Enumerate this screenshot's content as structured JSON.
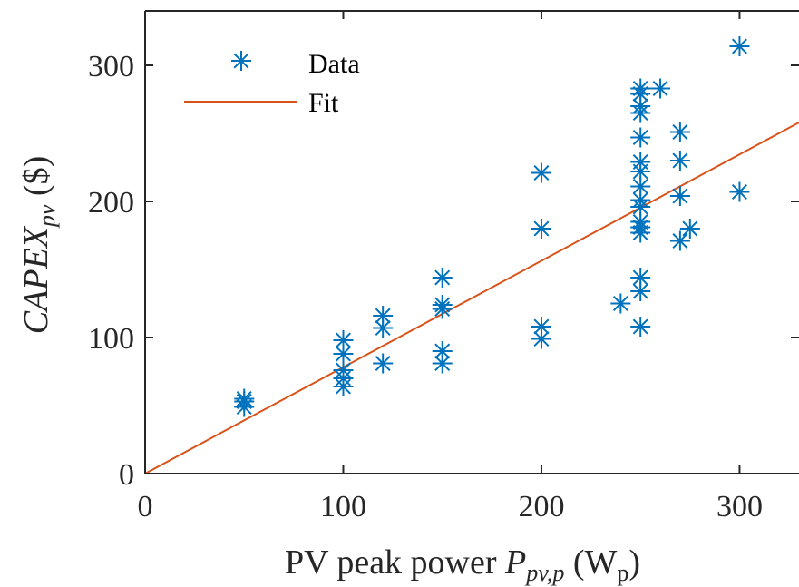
{
  "chart_data": {
    "type": "scatter",
    "xlabel": {
      "text": "PV peak power ",
      "sym": "P",
      "sub": "pv,p",
      "unit_open": " (W",
      "unit_sub": "p",
      "unit_close": ")"
    },
    "ylabel": {
      "sym": "CAPEX",
      "sub": "pv",
      "unit": " ($)"
    },
    "xlim": [
      0,
      330
    ],
    "ylim": [
      0,
      340
    ],
    "xticks": [
      0,
      100,
      200,
      300
    ],
    "yticks": [
      0,
      100,
      200,
      300
    ],
    "grid": false,
    "legend_position": "top-left",
    "series": [
      {
        "name": "Data",
        "marker": "asterisk",
        "color": "#0072BD",
        "points": [
          [
            50,
            55
          ],
          [
            50,
            53
          ],
          [
            50,
            49
          ],
          [
            100,
            98
          ],
          [
            100,
            88
          ],
          [
            100,
            76
          ],
          [
            100,
            70
          ],
          [
            100,
            64
          ],
          [
            120,
            116
          ],
          [
            120,
            107
          ],
          [
            120,
            81
          ],
          [
            150,
            144
          ],
          [
            150,
            124
          ],
          [
            150,
            121
          ],
          [
            150,
            90
          ],
          [
            150,
            81
          ],
          [
            200,
            221
          ],
          [
            200,
            180
          ],
          [
            200,
            108
          ],
          [
            200,
            99
          ],
          [
            240,
            125
          ],
          [
            250,
            283
          ],
          [
            250,
            279
          ],
          [
            250,
            270
          ],
          [
            250,
            265
          ],
          [
            250,
            247
          ],
          [
            250,
            229
          ],
          [
            250,
            222
          ],
          [
            250,
            211
          ],
          [
            250,
            201
          ],
          [
            250,
            196
          ],
          [
            250,
            185
          ],
          [
            250,
            181
          ],
          [
            250,
            177
          ],
          [
            250,
            144
          ],
          [
            250,
            134
          ],
          [
            250,
            108
          ],
          [
            260,
            283
          ],
          [
            270,
            251
          ],
          [
            270,
            230
          ],
          [
            270,
            204
          ],
          [
            270,
            171
          ],
          [
            275,
            180
          ],
          [
            300,
            314
          ],
          [
            300,
            207
          ]
        ]
      },
      {
        "name": "Fit",
        "type": "line",
        "color": "#D95319",
        "x": [
          0,
          330
        ],
        "y": [
          0,
          258
        ]
      }
    ]
  }
}
